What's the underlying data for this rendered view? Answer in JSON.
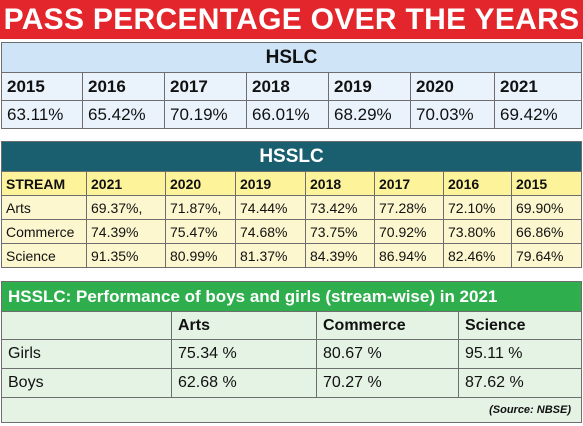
{
  "title": "PASS PERCENTAGE OVER THE YEARS",
  "hslc": {
    "heading": "HSLC",
    "years": [
      "2015",
      "2016",
      "2017",
      "2018",
      "2019",
      "2020",
      "2021"
    ],
    "values": [
      "63.11%",
      "65.42%",
      "70.19%",
      "66.01%",
      "68.29%",
      "70.03%",
      "69.42%"
    ]
  },
  "hsslc": {
    "heading": "HSSLC",
    "columns": [
      "STREAM",
      "2021",
      "2020",
      "2019",
      "2018",
      "2017",
      "2016",
      "2015"
    ],
    "rows": [
      [
        "Arts",
        "69.37%,",
        "71.87%,",
        "74.44%",
        "73.42%",
        "77.28%",
        "72.10%",
        "69.90%"
      ],
      [
        "Commerce",
        "74.39%",
        "75.47%",
        "74.68%",
        "73.75%",
        "70.92%",
        "73.80%",
        "66.86%"
      ],
      [
        "Science",
        "91.35%",
        "80.99%",
        "81.37%",
        "84.39%",
        "86.94%",
        "82.46%",
        "79.64%"
      ]
    ]
  },
  "gender": {
    "heading": "HSSLC: Performance of boys and girls (stream-wise) in 2021",
    "columns": [
      "",
      "Arts",
      "Commerce",
      "Science"
    ],
    "rows": [
      [
        "Girls",
        "75.34 %",
        "80.67 %",
        "95.11 %"
      ],
      [
        "Boys",
        "62.68 %",
        "70.27 %",
        "87.62 %"
      ]
    ],
    "source": "(Source: NBSE)"
  },
  "colors": {
    "title_bg": "#e3262b",
    "hslc_header_bg": "#cfe4f6",
    "hsslc_header_bg": "#1a5f6f",
    "gender_header_bg": "#2fae4e"
  }
}
